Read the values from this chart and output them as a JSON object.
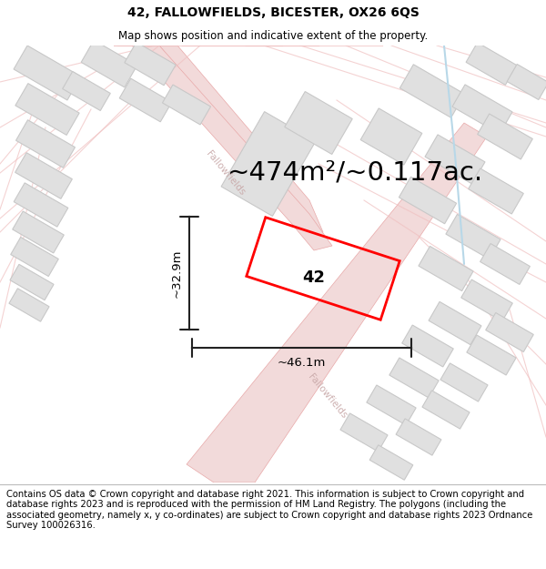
{
  "title": "42, FALLOWFIELDS, BICESTER, OX26 6QS",
  "subtitle": "Map shows position and indicative extent of the property.",
  "area_text": "~474m²/~0.117ac.",
  "property_number": "42",
  "dim_width": "~46.1m",
  "dim_height": "~32.9m",
  "footer": "Contains OS data © Crown copyright and database right 2021. This information is subject to Crown copyright and database rights 2023 and is reproduced with the permission of HM Land Registry. The polygons (including the associated geometry, namely x, y co-ordinates) are subject to Crown copyright and database rights 2023 Ordnance Survey 100026316.",
  "bg_color": "#ffffff",
  "map_bg": "#f9f4f4",
  "road_fill": "#f2dada",
  "road_line": "#e8a8a8",
  "thin_road": "#f0c0c0",
  "building_fill": "#e0e0e0",
  "building_edge": "#c8c8c8",
  "property_color": "#ff0000",
  "water_color": "#b8d8e8",
  "dim_color": "#222222",
  "title_fontsize": 10,
  "subtitle_fontsize": 8.5,
  "area_fontsize": 21,
  "label_fontsize": 13,
  "dim_fontsize": 9.5,
  "footer_fontsize": 7.2,
  "road_label_color": "#c8a8a8",
  "road_label_size": 7.5
}
